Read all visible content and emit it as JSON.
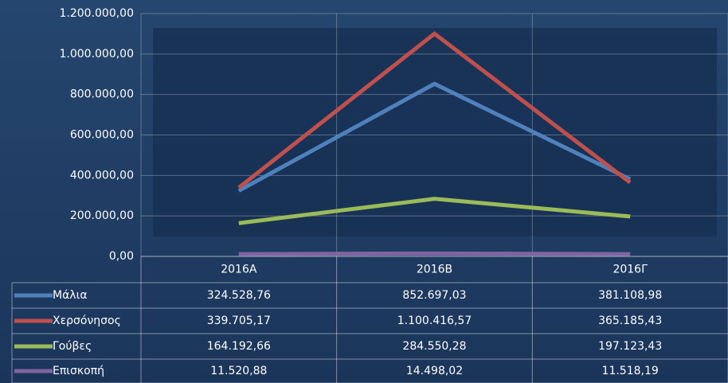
{
  "chart_data": {
    "type": "line",
    "categories": [
      "2016Α",
      "2016Β",
      "2016Γ"
    ],
    "series": [
      {
        "name": "Μάλια",
        "color": "#4f81bd",
        "values": [
          324528.76,
          852697.03,
          381108.98
        ],
        "value_labels": [
          "324.528,76",
          "852.697,03",
          "381.108,98"
        ]
      },
      {
        "name": "Χερσόνησος",
        "color": "#c0504d",
        "values": [
          339705.17,
          1100416.57,
          365185.43
        ],
        "value_labels": [
          "339.705,17",
          "1.100.416,57",
          "365.185,43"
        ]
      },
      {
        "name": "Γούβες",
        "color": "#9bbb59",
        "values": [
          164192.66,
          284550.28,
          197123.43
        ],
        "value_labels": [
          "164.192,66",
          "284.550,28",
          "197.123,43"
        ]
      },
      {
        "name": "Επισκοπή",
        "color": "#8064a2",
        "values": [
          11520.88,
          14498.02,
          11518.19
        ],
        "value_labels": [
          "11.520,88",
          "14.498,02",
          "11.518,19"
        ]
      }
    ],
    "ylim": [
      0,
      1200000
    ],
    "yticks": [
      {
        "value": 0,
        "label": "0,00"
      },
      {
        "value": 200000,
        "label": "200.000,00"
      },
      {
        "value": 400000,
        "label": "400.000,00"
      },
      {
        "value": 600000,
        "label": "600.000,00"
      },
      {
        "value": 800000,
        "label": "800.000,00"
      },
      {
        "value": 1000000,
        "label": "1.000.000,00"
      },
      {
        "value": 1200000,
        "label": "1.200.000,00"
      }
    ],
    "grid": true
  }
}
